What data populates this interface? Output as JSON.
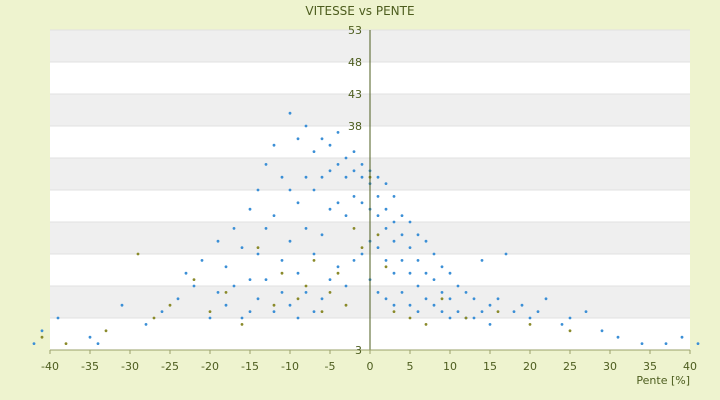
{
  "chart_data": {
    "type": "scatter",
    "title": "VITESSE vs PENTE",
    "xlabel": "Pente [%]",
    "ylabel": "",
    "xlim": [
      -40,
      40
    ],
    "ylim": [
      3,
      53
    ],
    "x_ticks": [
      -40,
      -35,
      -30,
      -25,
      -20,
      -15,
      -10,
      -5,
      0,
      5,
      10,
      15,
      20,
      25,
      30,
      35,
      40
    ],
    "y_ticks": [
      3,
      8,
      13,
      18,
      23,
      28,
      33,
      38,
      43,
      48,
      53
    ],
    "y_tick_labels_shown": [
      "3",
      "38",
      "43",
      "48",
      "53"
    ],
    "grid": true,
    "legend": "none",
    "colors": {
      "background": "#eef3cf",
      "plot_background": "#ffffff",
      "band": "#efefef",
      "primary_points": "#3b8fd6",
      "secondary_points": "#8a8a2a",
      "text": "#4d5d1f"
    },
    "series": [
      {
        "color": "#3b8fd6",
        "x": [
          -42,
          -41,
          -39,
          -35,
          -34,
          -31,
          -28,
          -26,
          -24,
          -23,
          -22,
          -21,
          -20,
          -19,
          -19,
          -18,
          -18,
          -17,
          -17,
          -16,
          -16,
          -15,
          -15,
          -15,
          -14,
          -14,
          -14,
          -13,
          -13,
          -13,
          -12,
          -12,
          -12,
          -11,
          -11,
          -11,
          -10,
          -10,
          -10,
          -10,
          -9,
          -9,
          -9,
          -9,
          -8,
          -8,
          -8,
          -8,
          -7,
          -7,
          -7,
          -7,
          -6,
          -6,
          -6,
          -6,
          -5,
          -5,
          -5,
          -5,
          -4,
          -4,
          -4,
          -4,
          -3,
          -3,
          -3,
          -3,
          -2,
          -2,
          -2,
          -2,
          -1,
          -1,
          -1,
          -1,
          0,
          0,
          0,
          0,
          0,
          1,
          1,
          1,
          1,
          1,
          2,
          2,
          2,
          2,
          2,
          3,
          3,
          3,
          3,
          3,
          4,
          4,
          4,
          4,
          5,
          5,
          5,
          5,
          6,
          6,
          6,
          6,
          7,
          7,
          7,
          8,
          8,
          8,
          9,
          9,
          9,
          10,
          10,
          10,
          11,
          11,
          12,
          12,
          13,
          13,
          14,
          14,
          15,
          15,
          16,
          17,
          18,
          19,
          20,
          21,
          22,
          24,
          25,
          27,
          29,
          31,
          34,
          37,
          39,
          41
        ],
        "y": [
          4,
          6,
          8,
          5,
          4,
          10,
          7,
          9,
          11,
          15,
          13,
          17,
          8,
          20,
          12,
          10,
          16,
          22,
          13,
          8,
          19,
          25,
          14,
          9,
          28,
          18,
          11,
          32,
          22,
          14,
          35,
          24,
          9,
          30,
          17,
          12,
          40,
          28,
          20,
          10,
          36,
          26,
          15,
          8,
          38,
          30,
          22,
          12,
          34,
          28,
          18,
          9,
          36,
          30,
          21,
          11,
          35,
          31,
          25,
          14,
          37,
          32,
          26,
          16,
          33,
          30,
          24,
          13,
          34,
          31,
          27,
          17,
          32,
          30,
          26,
          18,
          31,
          29,
          25,
          20,
          14,
          30,
          27,
          24,
          19,
          12,
          29,
          25,
          22,
          17,
          11,
          27,
          23,
          20,
          15,
          10,
          24,
          21,
          17,
          12,
          23,
          19,
          15,
          10,
          21,
          17,
          13,
          9,
          20,
          15,
          11,
          18,
          14,
          10,
          16,
          12,
          9,
          15,
          11,
          8,
          13,
          9,
          12,
          8,
          11,
          8,
          17,
          9,
          10,
          7,
          11,
          18,
          9,
          10,
          8,
          9,
          11,
          7,
          8,
          9,
          6,
          5,
          4,
          4,
          5,
          4
        ]
      },
      {
        "color": "#8a8a2a",
        "x": [
          -41,
          -38,
          -33,
          -29,
          -27,
          -25,
          -22,
          -20,
          -18,
          -16,
          -14,
          -12,
          -11,
          -9,
          -8,
          -7,
          -6,
          -5,
          -4,
          -3,
          -2,
          -1,
          0,
          1,
          2,
          3,
          5,
          7,
          9,
          12,
          16,
          20,
          25
        ],
        "y": [
          5,
          4,
          6,
          18,
          8,
          10,
          14,
          9,
          12,
          7,
          19,
          10,
          15,
          11,
          13,
          17,
          9,
          12,
          15,
          10,
          22,
          19,
          30,
          21,
          16,
          9,
          8,
          7,
          11,
          8,
          9,
          7,
          6
        ]
      }
    ]
  }
}
